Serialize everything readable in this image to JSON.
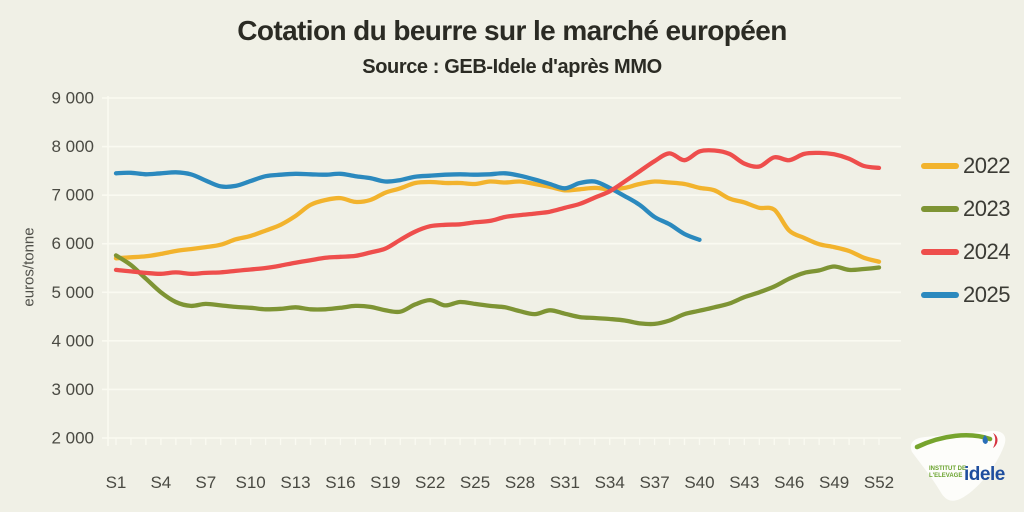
{
  "header": {
    "title": "Cotation du beurre sur le marché européen",
    "subtitle": "Source : GEB-Idele d'après MMO"
  },
  "chart_data": {
    "type": "line",
    "title": "Cotation du beurre sur le marché européen",
    "subtitle": "Source : GEB-Idele d'après MMO",
    "ylabel": "euros/tonne",
    "ylim": [
      2000,
      9000
    ],
    "yticks": [
      9000,
      8000,
      7000,
      6000,
      5000,
      4000,
      3000,
      2000
    ],
    "ytick_labels": [
      "9 000",
      "8 000",
      "7 000",
      "6 000",
      "5 000",
      "4 000",
      "3 000",
      "2 000"
    ],
    "x_unit": "week",
    "x_count": 52,
    "xticks": [
      1,
      4,
      7,
      10,
      13,
      16,
      19,
      22,
      25,
      28,
      31,
      34,
      37,
      40,
      43,
      46,
      49,
      52
    ],
    "xtick_labels": [
      "S1",
      "S4",
      "S7",
      "S10",
      "S13",
      "S16",
      "S19",
      "S22",
      "S25",
      "S28",
      "S31",
      "S34",
      "S37",
      "S40",
      "S43",
      "S46",
      "S49",
      "S52"
    ],
    "grid": "horizontal-white",
    "legend_position": "right",
    "series": [
      {
        "name": "2022",
        "color": "#f2b32d",
        "start_week": 1,
        "values": [
          5700,
          5720,
          5740,
          5790,
          5850,
          5890,
          5930,
          5980,
          6090,
          6160,
          6270,
          6390,
          6570,
          6800,
          6900,
          6940,
          6860,
          6900,
          7050,
          7140,
          7250,
          7270,
          7250,
          7250,
          7230,
          7280,
          7260,
          7280,
          7230,
          7170,
          7100,
          7120,
          7150,
          7120,
          7150,
          7230,
          7280,
          7260,
          7230,
          7150,
          7100,
          6930,
          6850,
          6740,
          6700,
          6270,
          6120,
          5990,
          5930,
          5850,
          5710,
          5630
        ]
      },
      {
        "name": "2023",
        "color": "#7e9434",
        "start_week": 1,
        "values": [
          5760,
          5560,
          5280,
          5000,
          4800,
          4720,
          4760,
          4730,
          4700,
          4680,
          4650,
          4660,
          4690,
          4650,
          4650,
          4680,
          4720,
          4700,
          4630,
          4600,
          4750,
          4840,
          4730,
          4800,
          4760,
          4720,
          4690,
          4610,
          4550,
          4630,
          4560,
          4490,
          4470,
          4450,
          4420,
          4360,
          4350,
          4420,
          4550,
          4620,
          4690,
          4770,
          4900,
          5000,
          5120,
          5280,
          5400,
          5450,
          5530,
          5460,
          5480,
          5510
        ]
      },
      {
        "name": "2024",
        "color": "#ee4e4c",
        "start_week": 1,
        "values": [
          5460,
          5430,
          5400,
          5380,
          5410,
          5380,
          5400,
          5410,
          5440,
          5470,
          5500,
          5550,
          5610,
          5660,
          5710,
          5730,
          5750,
          5820,
          5900,
          6080,
          6250,
          6360,
          6390,
          6400,
          6440,
          6470,
          6550,
          6590,
          6620,
          6660,
          6740,
          6820,
          6950,
          7080,
          7280,
          7490,
          7700,
          7860,
          7720,
          7900,
          7920,
          7850,
          7650,
          7590,
          7780,
          7720,
          7850,
          7870,
          7840,
          7750,
          7600,
          7560
        ]
      },
      {
        "name": "2025",
        "color": "#2b89be",
        "start_week": 1,
        "values": [
          7450,
          7460,
          7430,
          7450,
          7470,
          7430,
          7300,
          7180,
          7190,
          7290,
          7390,
          7420,
          7440,
          7430,
          7420,
          7440,
          7390,
          7350,
          7280,
          7310,
          7380,
          7400,
          7420,
          7430,
          7420,
          7430,
          7450,
          7400,
          7320,
          7230,
          7140,
          7250,
          7280,
          7150,
          6980,
          6800,
          6550,
          6400,
          6200,
          6080
        ]
      }
    ]
  },
  "legend": {
    "items": [
      "2022",
      "2023",
      "2024",
      "2025"
    ]
  },
  "logo": {
    "org_line1": "INSTITUT DE",
    "org_line2": "L'ELEVAGE",
    "brand": "idele"
  },
  "colors": {
    "background": "#f0f0e6",
    "grid": "#fafaf1",
    "tick_text": "#4a4a43",
    "title_text": "#2b2b24"
  }
}
